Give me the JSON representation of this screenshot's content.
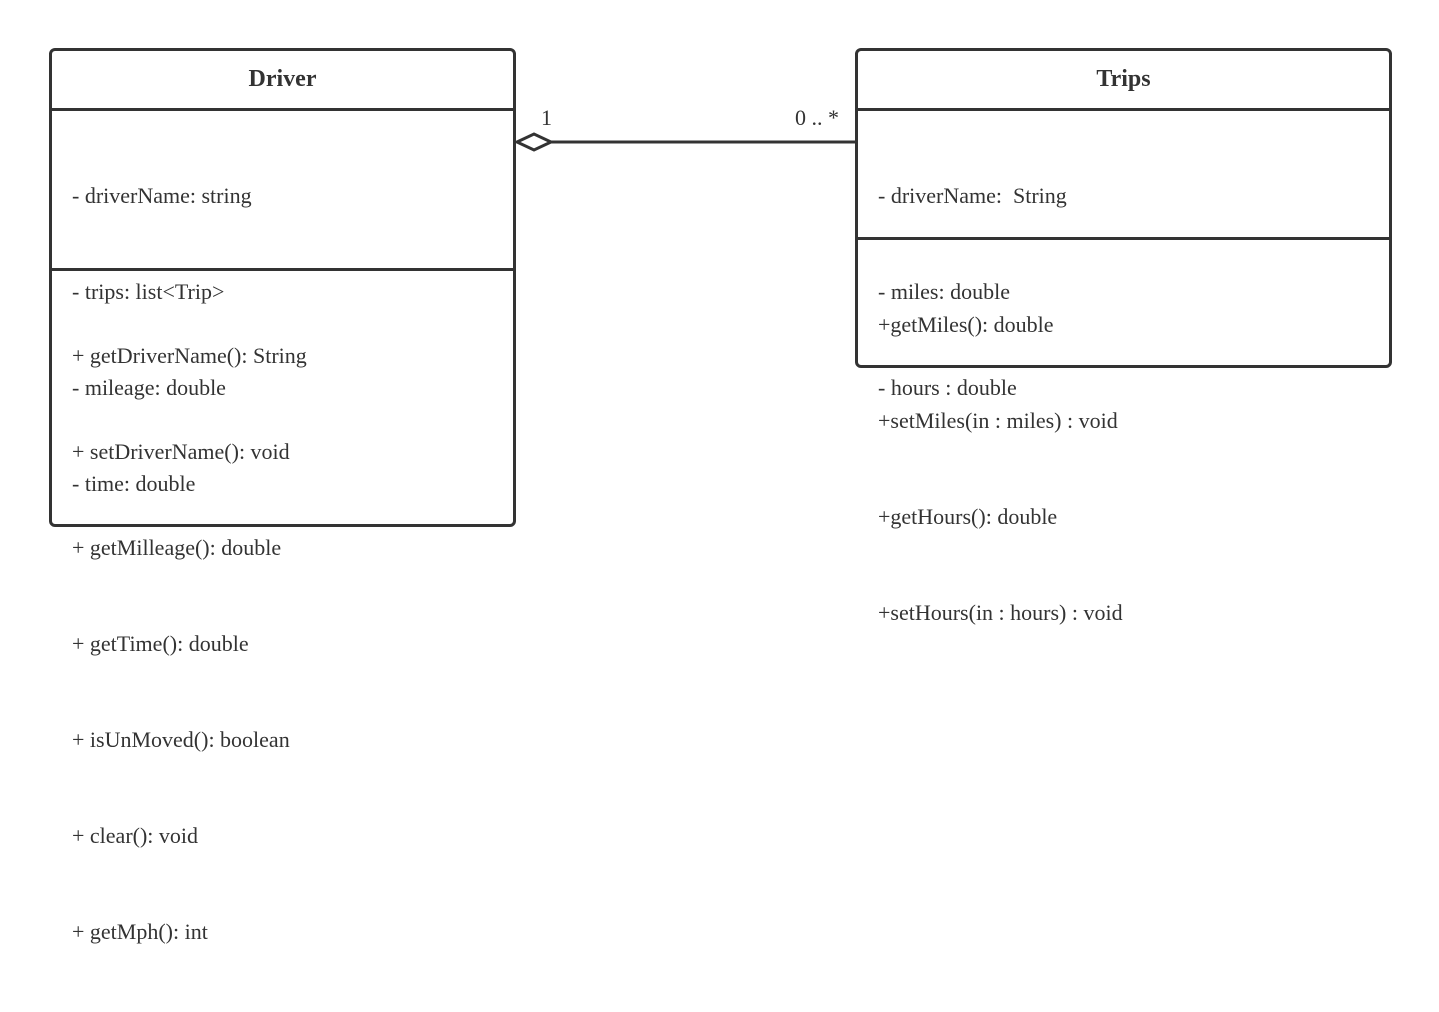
{
  "driver": {
    "name": "Driver",
    "attributes": [
      "- driverName: string",
      "- trips: list<Trip>",
      "- mileage: double",
      "- time: double"
    ],
    "methods": [
      "+ getDriverName(): String",
      "+ setDriverName(): void",
      "+ getMilleage(): double",
      "+ getTime(): double",
      "+ isUnMoved(): boolean",
      "+ clear(): void",
      "+ getMph(): int"
    ]
  },
  "trips": {
    "name": "Trips",
    "attributes": [
      "- driverName:  String",
      "- miles: double",
      "- hours : double"
    ],
    "methods": [
      "+getMiles(): double",
      "+setMiles(in : miles) : void",
      "+getHours(): double",
      "+setHours(in : hours) : void"
    ]
  },
  "association": {
    "type": "aggregation",
    "driver_multiplicity": "1",
    "trips_multiplicity": "0 .. *"
  },
  "colors": {
    "stroke": "#333333",
    "background": "#ffffff"
  }
}
